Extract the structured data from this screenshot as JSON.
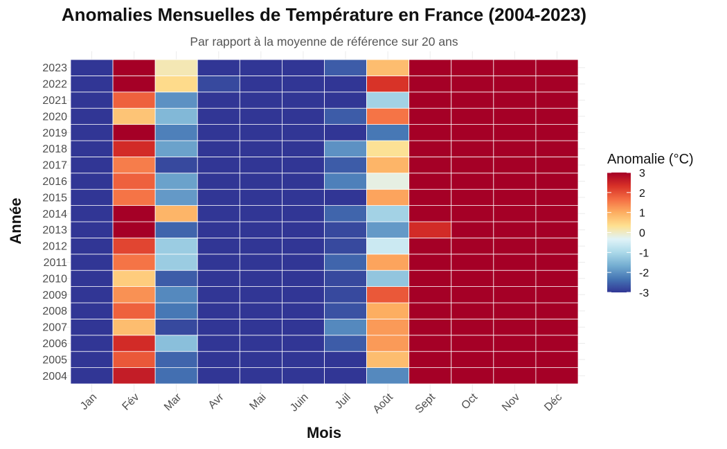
{
  "chart_data": {
    "type": "heatmap",
    "title": "Anomalies Mensuelles de Température en France (2004-2023)",
    "subtitle": "Par rapport à la moyenne de référence sur 20 ans",
    "xlabel": "Mois",
    "ylabel": "Année",
    "x_categories": [
      "Jan",
      "Fév",
      "Mar",
      "Avr",
      "Mai",
      "Juin",
      "Juil",
      "Août",
      "Sept",
      "Oct",
      "Nov",
      "Déc"
    ],
    "y_categories": [
      "2004",
      "2005",
      "2006",
      "2007",
      "2008",
      "2009",
      "2010",
      "2011",
      "2012",
      "2013",
      "2014",
      "2015",
      "2016",
      "2017",
      "2018",
      "2019",
      "2020",
      "2021",
      "2022",
      "2023"
    ],
    "values": [
      [
        -3,
        2.6,
        -2.4,
        -3,
        -3,
        -3,
        -3,
        -2.1,
        3,
        3,
        3,
        3
      ],
      [
        -3,
        1.9,
        -2.5,
        -3,
        -3,
        -3,
        -3,
        0.8,
        3,
        3,
        3,
        3
      ],
      [
        -3,
        2.4,
        -1.4,
        -3,
        -3,
        -3,
        -2.6,
        1.2,
        3,
        3,
        3,
        3
      ],
      [
        -3,
        0.8,
        -2.8,
        -3,
        -3,
        -3,
        -2.1,
        1.2,
        3,
        3,
        3,
        3
      ],
      [
        -3,
        1.8,
        -2.3,
        -3,
        -3,
        -3,
        -2.7,
        1.0,
        3,
        3,
        3,
        3
      ],
      [
        -3,
        1.3,
        -2.1,
        -3,
        -3,
        -3,
        -2.8,
        1.9,
        3,
        3,
        3,
        3
      ],
      [
        -3,
        0.6,
        -2.6,
        -3,
        -3,
        -3,
        -2.8,
        -1.3,
        3,
        3,
        3,
        3
      ],
      [
        -3,
        1.6,
        -1.2,
        -3,
        -3,
        -3,
        -2.5,
        1.1,
        3,
        3,
        3,
        3
      ],
      [
        -3,
        2.1,
        -1.2,
        -3,
        -3,
        -3,
        -2.8,
        -0.6,
        3,
        3,
        3,
        3
      ],
      [
        -3,
        3,
        -2.5,
        -3,
        -3,
        -3,
        -2.8,
        -1.9,
        2.4,
        3,
        3,
        3
      ],
      [
        -3,
        3,
        0.9,
        -3,
        -3,
        -3,
        -2.5,
        -1.1,
        3,
        3,
        3,
        3
      ],
      [
        -3,
        1.6,
        -1.9,
        -3,
        -3,
        -3,
        -3,
        1.1,
        3,
        3,
        3,
        3
      ],
      [
        -3,
        1.8,
        -1.8,
        -3,
        -3,
        -3,
        -2.2,
        -0.2,
        3,
        3,
        3,
        3
      ],
      [
        -3,
        1.5,
        -2.8,
        -3,
        -3,
        -3,
        -2.6,
        0.9,
        3,
        3,
        3,
        3
      ],
      [
        -3,
        2.4,
        -1.8,
        -3,
        -3,
        -3,
        -2.0,
        0.3,
        3,
        3,
        3,
        3
      ],
      [
        -3,
        3,
        -2.2,
        -3,
        -3,
        -3,
        -3,
        -2.3,
        3,
        3,
        3,
        3
      ],
      [
        -3,
        0.7,
        -1.5,
        -3,
        -3,
        -3,
        -2.6,
        1.6,
        3,
        3,
        3,
        3
      ],
      [
        -3,
        1.8,
        -2.0,
        -3,
        -3,
        -3,
        -3,
        -1.1,
        3,
        3,
        3,
        3
      ],
      [
        -3,
        3,
        0.4,
        -2.8,
        -3,
        -3,
        -3,
        2.3,
        3,
        3,
        3,
        3
      ],
      [
        -3,
        3,
        0.1,
        -3,
        -3,
        -3,
        -2.6,
        0.8,
        3,
        3,
        3,
        3
      ]
    ],
    "legend": {
      "title": "Anomalie (°C)",
      "ticks": [
        "3",
        "2",
        "1",
        "0",
        "-1",
        "-2",
        "-3"
      ],
      "tick_values": [
        3,
        2,
        1,
        0,
        -1,
        -2,
        -3
      ],
      "range": [
        -3,
        3
      ],
      "position": "right"
    },
    "colors": {
      "scale": [
        "#313695",
        "#4575b4",
        "#74add1",
        "#abd9e9",
        "#e0f3f8",
        "#fee090",
        "#fdae61",
        "#f46d43",
        "#d73027",
        "#a50026"
      ],
      "tile_border": "#ffffff"
    }
  }
}
